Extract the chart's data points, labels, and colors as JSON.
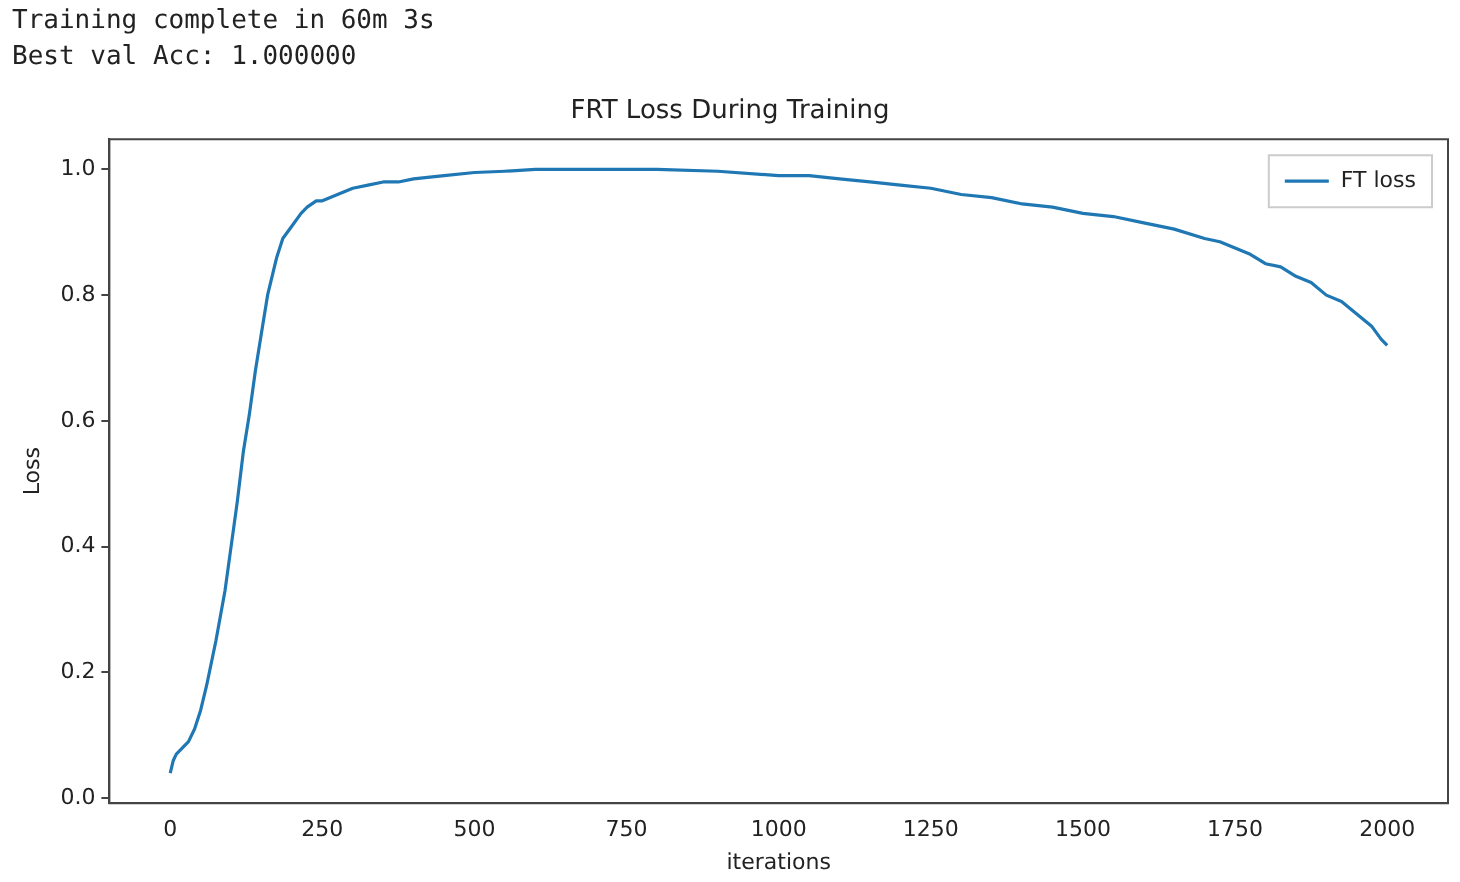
{
  "chart_data": {
    "type": "line",
    "title": "FRT Loss During Training",
    "xlabel": "iterations",
    "ylabel": "Loss",
    "annotations": [
      "Training complete in 60m 3s",
      "Best val Acc: 1.000000"
    ],
    "xlim": [
      -100,
      2100
    ],
    "xticks": [
      0,
      250,
      500,
      750,
      1000,
      1250,
      1500,
      1750,
      2000
    ],
    "ylim": [
      -0.008,
      1.048
    ],
    "yticks": [
      {
        "value": 0,
        "label": "0.0"
      },
      0.2,
      0.4,
      0.6,
      0.8,
      {
        "value": 1,
        "label": "1.0"
      }
    ],
    "legend": "top right",
    "grid": false,
    "marker": "none",
    "line_style": "solid",
    "series": [
      {
        "name": "FT loss",
        "color": "#1f77b4",
        "x": [
          0,
          5,
          10,
          20,
          30,
          40,
          50,
          60,
          75,
          90,
          100,
          110,
          120,
          130,
          140,
          150,
          160,
          170,
          175,
          185,
          200,
          215,
          225,
          240,
          250,
          275,
          300,
          325,
          350,
          375,
          400,
          450,
          500,
          550,
          600,
          700,
          800,
          900,
          1000,
          1050,
          1100,
          1150,
          1200,
          1250,
          1300,
          1350,
          1400,
          1450,
          1500,
          1550,
          1600,
          1650,
          1700,
          1725,
          1750,
          1775,
          1800,
          1825,
          1850,
          1875,
          1900,
          1925,
          1950,
          1975,
          1990,
          2000
        ],
        "values": [
          0.04,
          0.06,
          0.07,
          0.08,
          0.09,
          0.11,
          0.14,
          0.18,
          0.25,
          0.33,
          0.4,
          0.47,
          0.55,
          0.61,
          0.68,
          0.74,
          0.8,
          0.84,
          0.86,
          0.89,
          0.91,
          0.93,
          0.94,
          0.95,
          0.95,
          0.96,
          0.97,
          0.975,
          0.98,
          0.98,
          0.985,
          0.99,
          0.995,
          0.997,
          1.0,
          1.0,
          1.0,
          0.997,
          0.99,
          0.99,
          0.985,
          0.98,
          0.975,
          0.97,
          0.96,
          0.955,
          0.945,
          0.94,
          0.93,
          0.925,
          0.915,
          0.905,
          0.89,
          0.885,
          0.875,
          0.865,
          0.85,
          0.845,
          0.83,
          0.82,
          0.8,
          0.79,
          0.77,
          0.75,
          0.73,
          0.72
        ]
      }
    ]
  }
}
